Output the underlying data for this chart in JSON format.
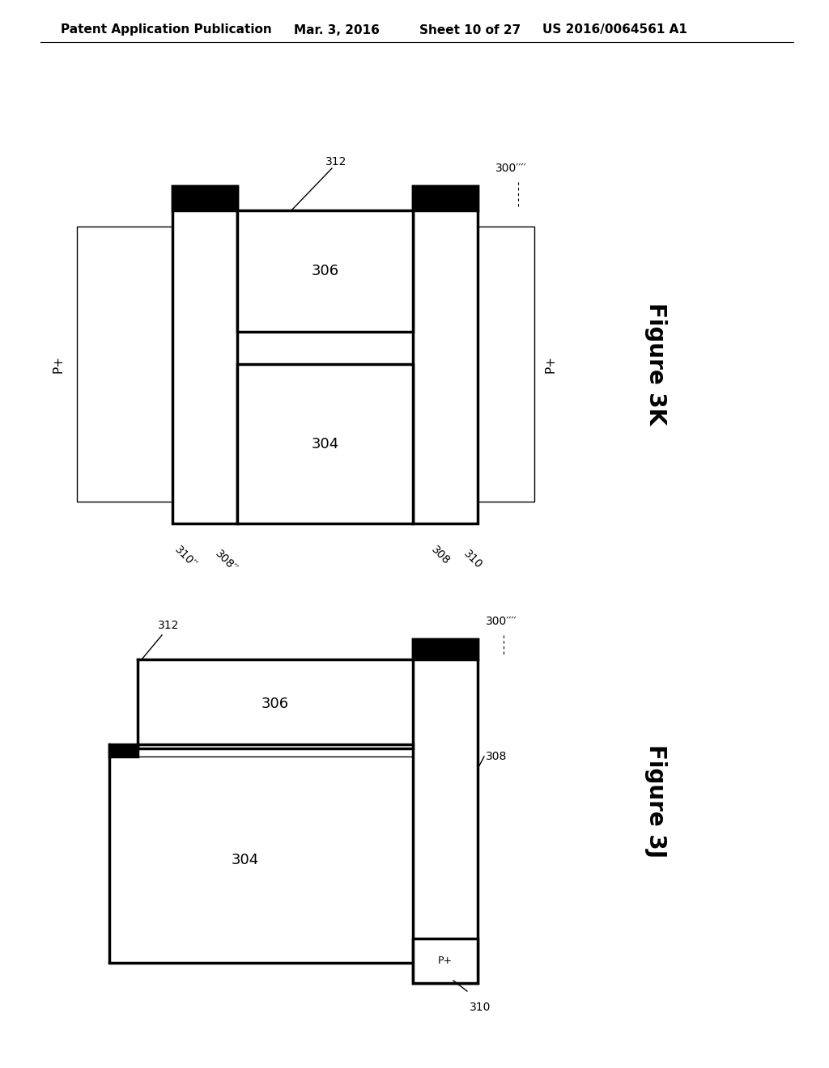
{
  "background_color": "#ffffff",
  "header_text": "Patent Application Publication",
  "header_date": "Mar. 3, 2016",
  "header_sheet": "Sheet 10 of 27",
  "header_patent": "US 2016/0064561 A1",
  "fig3k": {
    "label": "Figure 3K",
    "label_300": "300′′′′",
    "label_304": "304",
    "label_306": "306",
    "label_308_left": "308′′",
    "label_308_right": "308",
    "label_310_left": "310′′",
    "label_310_right": "310",
    "label_312": "312",
    "label_Pplus_left": "P+",
    "label_Pplus_right": "P+"
  },
  "fig3j": {
    "label": "Figure 3J",
    "label_300": "300′′′′",
    "label_304": "304",
    "label_306": "306",
    "label_308": "308",
    "label_310": "310",
    "label_312": "312",
    "label_Pplus": "P+"
  },
  "line_color": "#000000",
  "lw_thin": 1.0,
  "lw_thick": 2.5
}
